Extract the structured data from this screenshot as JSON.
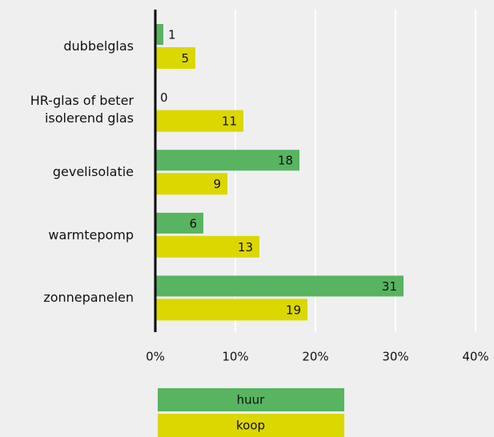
{
  "chart_data": {
    "type": "barh",
    "categories": [
      "dubbelglas",
      "HR-glas of beter\nisolerend glas",
      "gevelisolatie",
      "warmtepomp",
      "zonnepanelen"
    ],
    "series": [
      {
        "name": "huur",
        "color": "#58b461",
        "values": [
          1,
          0,
          18,
          6,
          31
        ]
      },
      {
        "name": "koop",
        "color": "#dcd700",
        "values": [
          5,
          11,
          9,
          13,
          19
        ]
      }
    ],
    "xlim": [
      0,
      40
    ],
    "xticks": [
      {
        "value": 0,
        "label": "0%"
      },
      {
        "value": 10,
        "label": "10%"
      },
      {
        "value": 20,
        "label": "20%"
      },
      {
        "value": 30,
        "label": "30%"
      },
      {
        "value": 40,
        "label": "40%"
      }
    ],
    "grid": true,
    "legend": "bottom"
  }
}
